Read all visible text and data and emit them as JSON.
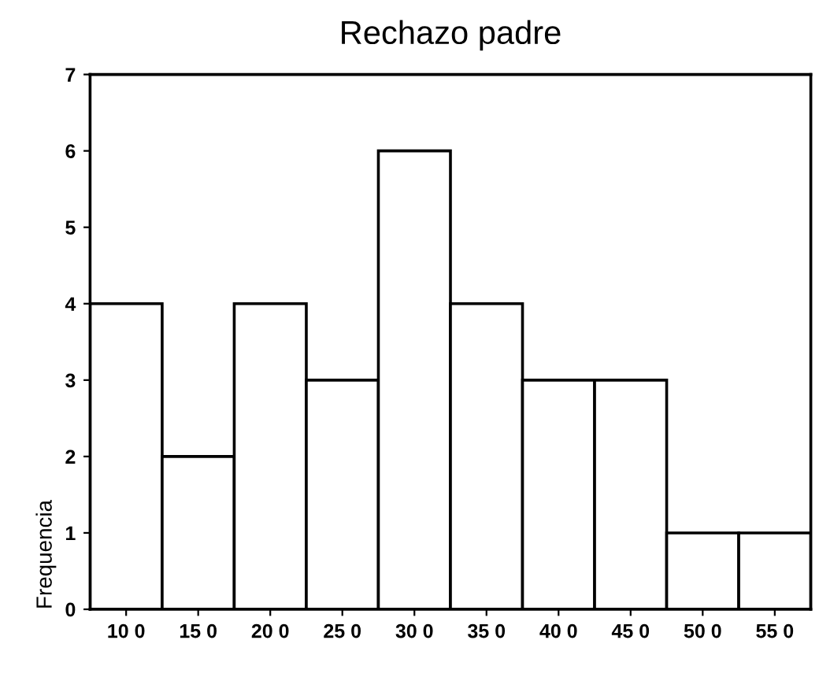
{
  "chart_data": {
    "type": "bar",
    "title": "Rechazo padre",
    "ylabel": "Frequencia",
    "categories": [
      "10 0",
      "15 0",
      "20 0",
      "25 0",
      "30 0",
      "35 0",
      "40 0",
      "45 0",
      "50 0",
      "55 0"
    ],
    "values": [
      4,
      2,
      4,
      3,
      6,
      4,
      3,
      3,
      1,
      1
    ],
    "color": "#ffffff",
    "ylim": [
      0,
      7
    ],
    "yticks": [
      0,
      1,
      2,
      3,
      4,
      5,
      6,
      7
    ]
  }
}
